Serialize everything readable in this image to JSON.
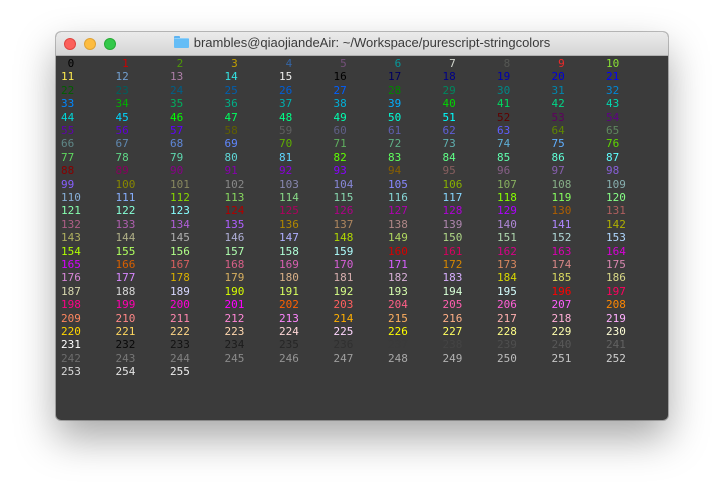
{
  "window": {
    "title": "brambles@qiaojiandeAir: ~/Workspace/purescript-stringcolors",
    "title_icon": "folder-icon",
    "background": "#3b3b3b"
  },
  "terminal": {
    "colors": [
      "#000000",
      "#cc0000",
      "#4e9a06",
      "#c4a000",
      "#3465a4",
      "#75507b",
      "#06989a",
      "#d3d7cf",
      "#555753",
      "#ef2929",
      "#8ae234",
      "#fce94f",
      "#729fcf",
      "#ad7fa8",
      "#34e2e2",
      "#eeeeec",
      "#000000",
      "#00005f",
      "#000087",
      "#0000af",
      "#0000d7",
      "#0000ff",
      "#005f00",
      "#005f5f",
      "#005f87",
      "#005faf",
      "#005fd7",
      "#005fff",
      "#008700",
      "#00875f",
      "#008787",
      "#0087af",
      "#0087d7",
      "#0087ff",
      "#00af00",
      "#00af5f",
      "#00af87",
      "#00afaf",
      "#00afd7",
      "#00afff",
      "#00d700",
      "#00d75f",
      "#00d787",
      "#00d7af",
      "#00d7d7",
      "#00d7ff",
      "#00ff00",
      "#00ff5f",
      "#00ff87",
      "#00ffaf",
      "#00ffd7",
      "#00ffff",
      "#5f0000",
      "#5f005f",
      "#5f0087",
      "#5f00af",
      "#5f00d7",
      "#5f00ff",
      "#5f5f00",
      "#5f5f5f",
      "#5f5f87",
      "#5f5faf",
      "#5f5fd7",
      "#5f5fff",
      "#5f8700",
      "#5f875f",
      "#5f8787",
      "#5f87af",
      "#5f87d7",
      "#5f87ff",
      "#5faf00",
      "#5faf5f",
      "#5faf87",
      "#5fafaf",
      "#5fafd7",
      "#5fafff",
      "#5fd700",
      "#5fd75f",
      "#5fd787",
      "#5fd7af",
      "#5fd7d7",
      "#5fd7ff",
      "#5fff00",
      "#5fff5f",
      "#5fff87",
      "#5fffaf",
      "#5fffd7",
      "#5fffff",
      "#870000",
      "#87005f",
      "#870087",
      "#8700af",
      "#8700d7",
      "#8700ff",
      "#875f00",
      "#875f5f",
      "#875f87",
      "#875faf",
      "#875fd7",
      "#875fff",
      "#878700",
      "#87875f",
      "#878787",
      "#8787af",
      "#8787d7",
      "#8787ff",
      "#87af00",
      "#87af5f",
      "#87af87",
      "#87afaf",
      "#87afd7",
      "#87afff",
      "#87d700",
      "#87d75f",
      "#87d787",
      "#87d7af",
      "#87d7d7",
      "#87d7ff",
      "#87ff00",
      "#87ff5f",
      "#87ff87",
      "#87ffaf",
      "#87ffd7",
      "#87ffff",
      "#af0000",
      "#af005f",
      "#af0087",
      "#af00af",
      "#af00d7",
      "#af00ff",
      "#af5f00",
      "#af5f5f",
      "#af5f87",
      "#af5faf",
      "#af5fd7",
      "#af5fff",
      "#af8700",
      "#af875f",
      "#af8787",
      "#af87af",
      "#af87d7",
      "#af87ff",
      "#afaf00",
      "#afaf5f",
      "#afaf87",
      "#afafaf",
      "#afafd7",
      "#afafff",
      "#afd700",
      "#afd75f",
      "#afd787",
      "#afd7af",
      "#afd7d7",
      "#afd7ff",
      "#afff00",
      "#afff5f",
      "#afff87",
      "#afffaf",
      "#afffd7",
      "#afffff",
      "#d70000",
      "#d7005f",
      "#d70087",
      "#d700af",
      "#d700d7",
      "#d700ff",
      "#d75f00",
      "#d75f5f",
      "#d75f87",
      "#d75faf",
      "#d75fd7",
      "#d75fff",
      "#d78700",
      "#d7875f",
      "#d78787",
      "#d787af",
      "#d787d7",
      "#d787ff",
      "#d7af00",
      "#d7af5f",
      "#d7af87",
      "#d7afaf",
      "#d7afd7",
      "#d7afff",
      "#d7d700",
      "#d7d75f",
      "#d7d787",
      "#d7d7af",
      "#d7d7d7",
      "#d7d7ff",
      "#d7ff00",
      "#d7ff5f",
      "#d7ff87",
      "#d7ffaf",
      "#d7ffd7",
      "#d7ffff",
      "#ff0000",
      "#ff005f",
      "#ff0087",
      "#ff00af",
      "#ff00d7",
      "#ff00ff",
      "#ff5f00",
      "#ff5f5f",
      "#ff5f87",
      "#ff5faf",
      "#ff5fd7",
      "#ff5fff",
      "#ff8700",
      "#ff875f",
      "#ff8787",
      "#ff87af",
      "#ff87d7",
      "#ff87ff",
      "#ffaf00",
      "#ffaf5f",
      "#ffaf87",
      "#ffafaf",
      "#ffafd7",
      "#ffafff",
      "#ffd700",
      "#ffd75f",
      "#ffd787",
      "#ffd7af",
      "#ffd7d7",
      "#ffd7ff",
      "#ffff00",
      "#ffff5f",
      "#ffff87",
      "#ffffaf",
      "#ffffd7",
      "#ffffff",
      "#080808",
      "#121212",
      "#1c1c1c",
      "#262626",
      "#303030",
      "#3a3a3a",
      "#444444",
      "#4e4e4e",
      "#585858",
      "#626262",
      "#6c6c6c",
      "#767676",
      "#808080",
      "#8a8a8a",
      "#949494",
      "#9e9e9e",
      "#a8a8a8",
      "#b2b2b2",
      "#bcbcbc",
      "#c6c6c6",
      "#d0d0d0",
      "#dadada",
      "#e4e4e4",
      "#eeeeee"
    ]
  }
}
